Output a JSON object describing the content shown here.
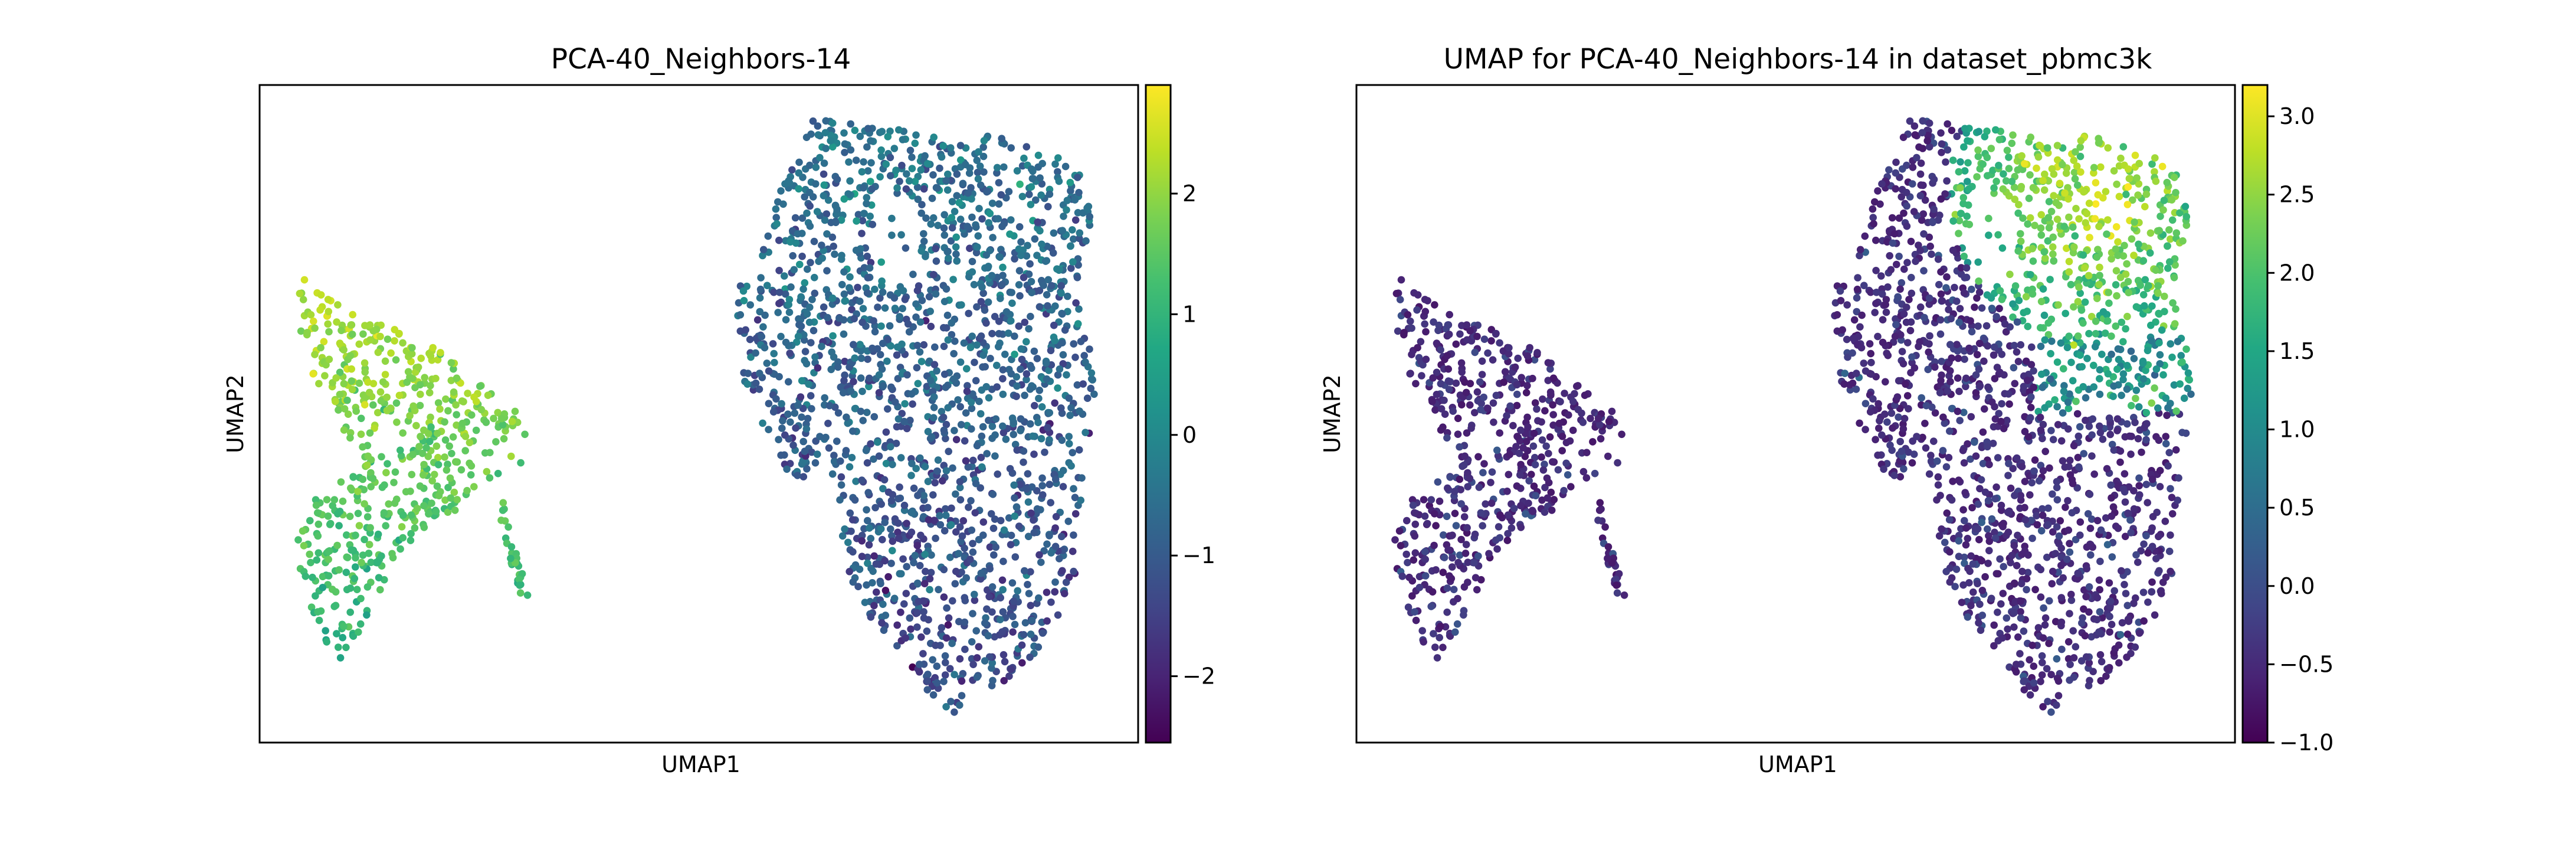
{
  "chart_data": [
    {
      "type": "scatter",
      "title": "PCA-40_Neighbors-14",
      "xlabel": "UMAP1",
      "ylabel": "UMAP2",
      "xticks": [],
      "yticks": [],
      "grid": false,
      "colormap": "viridis",
      "colorbar": {
        "range": [
          -2.55,
          2.9
        ],
        "ticks": [
          2,
          1,
          0,
          -1,
          -2
        ],
        "tick_labels": [
          "2",
          "1",
          "0",
          "−1",
          "−2"
        ]
      },
      "clusters": [
        {
          "x": [
            0.0,
            0.2
          ],
          "y_top": 0.8,
          "y_mid": 0.4,
          "y_bottom": 0.13,
          "value_range": [
            0.8,
            2.6
          ],
          "count": 560,
          "note": "left lobe, yellow-green top, green bottom"
        },
        {
          "x": [
            0.53,
            0.96
          ],
          "y_top": 0.97,
          "y_mid": 0.55,
          "y_bottom": 0.05,
          "value_range": [
            -2.0,
            0.6
          ],
          "count": 1800,
          "note": "right lobe, mostly teal/blue"
        }
      ]
    },
    {
      "type": "scatter",
      "title": "UMAP for PCA-40_Neighbors-14 in dataset_pbmc3k",
      "xlabel": "UMAP1",
      "ylabel": "UMAP2",
      "xticks": [],
      "yticks": [],
      "grid": false,
      "colormap": "viridis",
      "colorbar": {
        "range": [
          -1.0,
          3.2
        ],
        "ticks": [
          3.0,
          2.5,
          2.0,
          1.5,
          1.0,
          0.5,
          0.0,
          -0.5,
          -1.0
        ],
        "tick_labels": [
          "3.0",
          "2.5",
          "2.0",
          "1.5",
          "1.0",
          "0.5",
          "0.0",
          "−0.5",
          "−1.0"
        ]
      },
      "clusters": [
        {
          "value_range": [
            -1.0,
            0.6
          ],
          "count": 560,
          "note": "left lobe, mostly dark purple"
        },
        {
          "value_range": [
            -1.0,
            3.1
          ],
          "count": 1800,
          "note": "right lobe, purple with yellow-green region at upper right"
        }
      ]
    }
  ],
  "colors": {
    "viridis": [
      "#440154",
      "#482475",
      "#414487",
      "#355f8d",
      "#2a788e",
      "#21918c",
      "#22a884",
      "#44bf70",
      "#7ad151",
      "#bddf26",
      "#fde725"
    ],
    "frame": "#000000",
    "background": "#ffffff"
  }
}
